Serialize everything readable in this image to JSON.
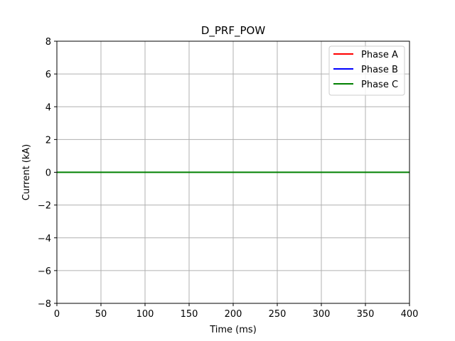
{
  "chart_data": {
    "type": "line",
    "title": "D_PRF_POW",
    "xlabel": "Time (ms)",
    "ylabel": "Current (kA)",
    "xlim": [
      0,
      400
    ],
    "ylim": [
      -8,
      8
    ],
    "xticks": [
      0,
      50,
      100,
      150,
      200,
      250,
      300,
      350,
      400
    ],
    "yticks": [
      -8,
      -6,
      -4,
      -2,
      0,
      2,
      4,
      6,
      8
    ],
    "ytick_labels": [
      "−8",
      "−6",
      "−4",
      "−2",
      "0",
      "2",
      "4",
      "6",
      "8"
    ],
    "grid": true,
    "legend_position": "top-right",
    "series": [
      {
        "name": "Phase A",
        "color": "#ff0000",
        "x": [
          0,
          400
        ],
        "y": [
          0,
          0
        ]
      },
      {
        "name": "Phase B",
        "color": "#0000ff",
        "x": [
          0,
          400
        ],
        "y": [
          0,
          0
        ]
      },
      {
        "name": "Phase C",
        "color": "#008000",
        "x": [
          0,
          400
        ],
        "y": [
          0,
          0
        ]
      }
    ]
  }
}
